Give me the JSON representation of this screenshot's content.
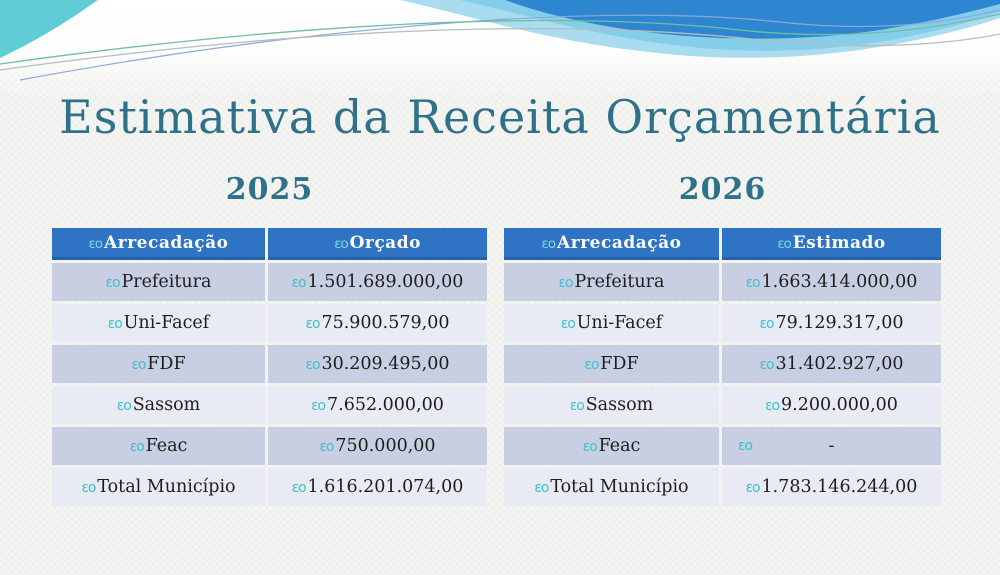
{
  "slide": {
    "title": "Estimativa da Receita Orçamentária",
    "bullet_glyph": "εo",
    "colors": {
      "title_teal": "#2e7189",
      "header_blue": "#2f73c4",
      "row_dark": "#c9cfe2",
      "row_light": "#e9ebf4",
      "bullet_cyan": "#3fc0cf",
      "corner_teal": "#5fccd6",
      "wave_dark_blue": "#2e86d1",
      "wave_light_blue": "#a8dcee"
    },
    "tables": [
      {
        "year": "2025",
        "headers": [
          "Arrecadação",
          "Orçado"
        ],
        "rows": [
          [
            "Prefeitura",
            "1.501.689.000,00"
          ],
          [
            "Uni-Facef",
            "75.900.579,00"
          ],
          [
            "FDF",
            "30.209.495,00"
          ],
          [
            "Sassom",
            "7.652.000,00"
          ],
          [
            "Feac",
            "750.000,00"
          ],
          [
            "Total Município",
            "1.616.201.074,00"
          ]
        ]
      },
      {
        "year": "2026",
        "headers": [
          "Arrecadação",
          "Estimado"
        ],
        "rows": [
          [
            "Prefeitura",
            "1.663.414.000,00"
          ],
          [
            "Uni-Facef",
            "79.129.317,00"
          ],
          [
            "FDF",
            "31.402.927,00"
          ],
          [
            "Sassom",
            "9.200.000,00"
          ],
          [
            "Feac",
            "-"
          ],
          [
            "Total Município",
            "1.783.146.244,00"
          ]
        ]
      }
    ]
  }
}
